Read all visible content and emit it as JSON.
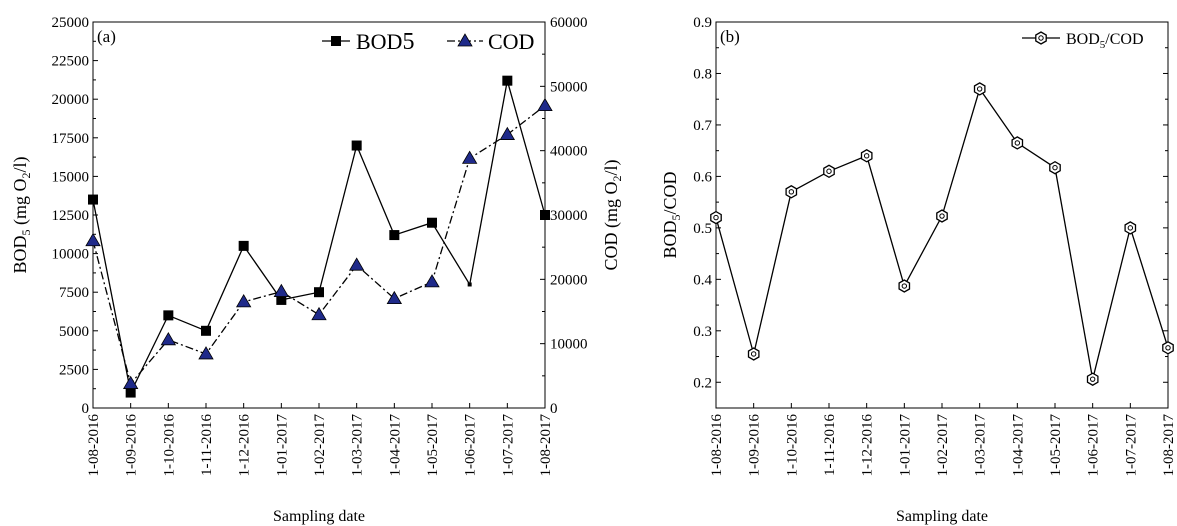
{
  "chart_data": [
    {
      "panel_label": "(a)",
      "type": "line",
      "x": [
        "1-08-2016",
        "1-09-2016",
        "1-10-2016",
        "1-11-2016",
        "1-12-2016",
        "1-01-2017",
        "1-02-2017",
        "1-03-2017",
        "1-04-2017",
        "1-05-2017",
        "1-06-2017",
        "1-07-2017",
        "1-08-2017"
      ],
      "xlabel": "Sampling date",
      "ylabel_left": {
        "base": "BOD",
        "sub": "5",
        "rest": " (mg O",
        "sub2": "2",
        "end": "/l)"
      },
      "ylabel_right": {
        "base": "COD (mg O",
        "sub": "2",
        "end": "/l)"
      },
      "ylim_left": [
        0,
        25000
      ],
      "yticks_left": [
        "0",
        "2500",
        "5000",
        "7500",
        "10000",
        "12500",
        "15000",
        "17500",
        "20000",
        "22500",
        "25000"
      ],
      "ylim_right": [
        0,
        60000
      ],
      "yticks_right": [
        "0",
        "10000",
        "20000",
        "30000",
        "40000",
        "50000",
        "60000"
      ],
      "legend_position": "top-right",
      "series": [
        {
          "name": "BOD",
          "name_sub": "5",
          "axis": "left",
          "marker": "square",
          "line": "solid",
          "color": "#000000",
          "values": [
            13500,
            1000,
            6000,
            5000,
            10500,
            7000,
            7500,
            17000,
            11200,
            12000,
            8000,
            21200,
            12500
          ]
        },
        {
          "name": "COD",
          "axis": "right",
          "marker": "triangle",
          "line": "dashdot",
          "color": "#1f2a8a",
          "values": [
            26000,
            3800,
            10600,
            8400,
            16500,
            18100,
            14500,
            22200,
            17000,
            19600,
            38800,
            42500,
            47000
          ]
        }
      ]
    },
    {
      "panel_label": "(b)",
      "type": "line",
      "x": [
        "1-08-2016",
        "1-09-2016",
        "1-10-2016",
        "1-11-2016",
        "1-12-2016",
        "1-01-2017",
        "1-02-2017",
        "1-03-2017",
        "1-04-2017",
        "1-05-2017",
        "1-06-2017",
        "1-07-2017",
        "1-08-2017"
      ],
      "xlabel": "Sampling date",
      "ylabel": {
        "base": "BOD",
        "sub": "5",
        "end": "/COD"
      },
      "ylim": [
        0.15,
        0.9
      ],
      "yticks": [
        "0.2",
        "0.3",
        "0.4",
        "0.5",
        "0.6",
        "0.7",
        "0.8",
        "0.9"
      ],
      "legend_position": "top-right",
      "series": [
        {
          "name": "BOD",
          "name_sub": "5",
          "name_end": "/COD",
          "marker": "hexagon",
          "line": "solid",
          "color": "#000000",
          "values": [
            0.52,
            0.255,
            0.57,
            0.61,
            0.64,
            0.387,
            0.523,
            0.77,
            0.665,
            0.617,
            0.206,
            0.5,
            0.267
          ]
        }
      ]
    }
  ]
}
